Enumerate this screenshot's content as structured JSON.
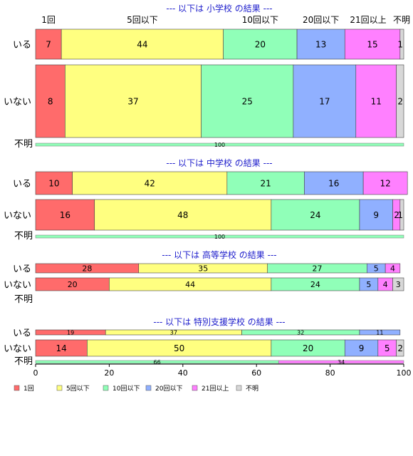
{
  "chart_data": {
    "type": "bar",
    "stacked": "horizontal-percent",
    "categories": [
      "1回",
      "5回以下",
      "10回以下",
      "20回以下",
      "21回以上",
      "不明"
    ],
    "colors": [
      "#ff6b6b",
      "#ffff80",
      "#90ffb8",
      "#90b0ff",
      "#ff80ff",
      "#d8d8d8"
    ],
    "xlim": [
      0,
      100
    ],
    "x_ticks": [
      "0",
      "20",
      "40",
      "60",
      "80",
      "100"
    ],
    "legend": {
      "placement": "bottom",
      "labels": [
        "1回",
        "5回以下",
        "10回以下",
        "20回以下",
        "21回以上",
        "不明"
      ]
    },
    "sections": [
      {
        "title": "--- 以下は 小学校 の結果 ---",
        "rows": [
          {
            "label": "いる",
            "values": [
              7,
              44,
              20,
              13,
              15,
              1
            ]
          },
          {
            "label": "いない",
            "values": [
              8,
              37,
              25,
              17,
              11,
              2
            ]
          }
        ],
        "unknown_row": {
          "label": "不明",
          "values": [
            100
          ],
          "value_labels": [
            "100"
          ],
          "colors": [
            "#90ffb8"
          ]
        }
      },
      {
        "title": "--- 以下は 中学校 の結果 ---",
        "rows": [
          {
            "label": "いる",
            "values": [
              10,
              42,
              21,
              16,
              12,
              0
            ]
          },
          {
            "label": "いない",
            "values": [
              16,
              48,
              24,
              9,
              2,
              1
            ]
          }
        ],
        "unknown_row": {
          "label": "不明",
          "values": [
            100
          ],
          "value_labels": [
            "100"
          ],
          "colors": [
            "#90ffb8"
          ]
        }
      },
      {
        "title": "--- 以下は 高等学校 の結果 ---",
        "rows": [
          {
            "label": "いる",
            "values": [
              28,
              35,
              27,
              5,
              4,
              0
            ]
          },
          {
            "label": "いない",
            "values": [
              20,
              44,
              24,
              5,
              4,
              3
            ]
          }
        ],
        "unknown_row": {
          "label": "不明",
          "values": [],
          "value_labels": [],
          "colors": []
        }
      },
      {
        "title": "--- 以下は 特別支援学校 の結果 ---",
        "rows": [
          {
            "label": "いる",
            "values": [
              19,
              37,
              32,
              11,
              0,
              0
            ]
          },
          {
            "label": "いない",
            "values": [
              14,
              50,
              20,
              9,
              5,
              2
            ]
          }
        ],
        "unknown_row": {
          "label": "不明",
          "values": [
            66,
            34
          ],
          "value_labels": [
            "66",
            "34"
          ],
          "colors": [
            "#90ffb8",
            "#ff80ff"
          ]
        }
      }
    ]
  }
}
